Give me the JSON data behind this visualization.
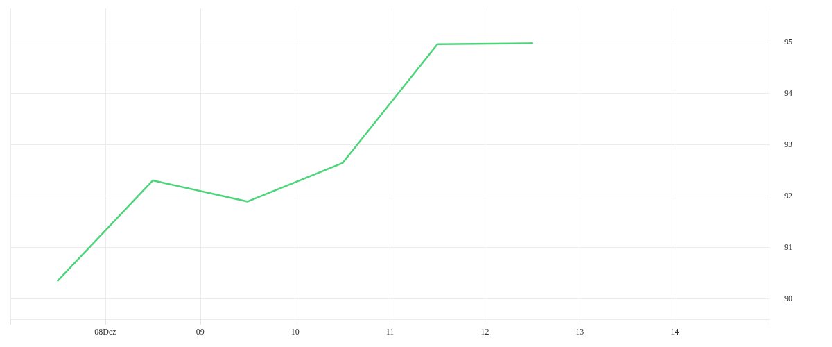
{
  "chart_data": {
    "type": "line",
    "x": [
      "--12-07T12:00",
      "--12-08T12:00",
      "--12-09T12:00",
      "--12-10T12:00",
      "--12-11T12:00",
      "--12-12T12:00"
    ],
    "series": [
      {
        "color": "#4cd47a",
        "values": [
          90.35,
          92.3,
          91.89,
          92.64,
          94.95,
          94.97
        ]
      }
    ],
    "xlim": [
      "--12-07",
      "--12-15"
    ],
    "xticks": [
      {
        "value": "--12-07",
        "label": null
      },
      {
        "value": "--12-08",
        "label": "08Dez"
      },
      {
        "value": "--12-09",
        "label": "09"
      },
      {
        "value": "--12-10",
        "label": "10"
      },
      {
        "value": "--12-11",
        "label": "11"
      },
      {
        "value": "--12-12",
        "label": "12"
      },
      {
        "value": "--12-13",
        "label": "13"
      },
      {
        "value": "--12-14",
        "label": "14"
      },
      {
        "value": "--12-15",
        "label": null
      }
    ],
    "ylim": [
      89.6,
      95.65
    ],
    "yticks": [
      90,
      91,
      92,
      93,
      94,
      95
    ],
    "grid": true,
    "marker": "none",
    "line_style": "solid"
  }
}
